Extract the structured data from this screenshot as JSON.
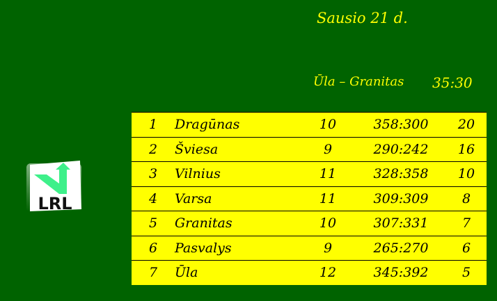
{
  "header": {
    "date": "Sausio 21 d."
  },
  "last_result": {
    "match": "Ūla – Granitas",
    "score": "35:30"
  },
  "logo": {
    "text": "LRL",
    "colors": {
      "arrow": "#3ef08a",
      "tile": "#ffffff"
    }
  },
  "standings": [
    {
      "rank": "1",
      "team": "Dragūnas",
      "games": "10",
      "points_diff": "358:300",
      "score": "20"
    },
    {
      "rank": "2",
      "team": "Šviesa",
      "games": "9",
      "points_diff": "290:242",
      "score": "16"
    },
    {
      "rank": "3",
      "team": "Vilnius",
      "games": "11",
      "points_diff": "328:358",
      "score": "10"
    },
    {
      "rank": "4",
      "team": "Varsa",
      "games": "11",
      "points_diff": "309:309",
      "score": "8"
    },
    {
      "rank": "5",
      "team": "Granitas",
      "games": "10",
      "points_diff": "307:331",
      "score": "7"
    },
    {
      "rank": "6",
      "team": "Pasvalys",
      "games": "9",
      "points_diff": "265:270",
      "score": "6"
    },
    {
      "rank": "7",
      "team": "Ūla",
      "games": "12",
      "points_diff": "345:392",
      "score": "5"
    }
  ],
  "colors": {
    "background": "#006300",
    "highlight": "#ffff00"
  }
}
